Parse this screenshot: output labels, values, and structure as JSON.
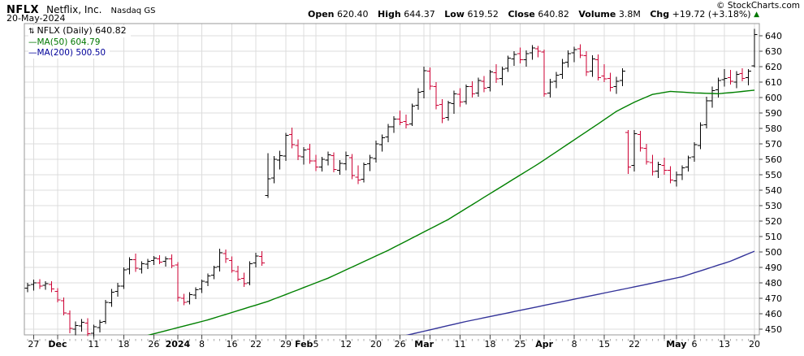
{
  "header": {
    "symbol": "NFLX",
    "company": "Netflix, Inc.",
    "exchange": "Nasdaq GS",
    "date": "20-May-2024",
    "watermark": "© StockCharts.com"
  },
  "quote": {
    "open_label": "Open",
    "open": "620.40",
    "high_label": "High",
    "high": "644.37",
    "low_label": "Low",
    "low": "619.52",
    "close_label": "Close",
    "close": "640.82",
    "volume_label": "Volume",
    "volume": "3.8M",
    "chg_label": "Chg",
    "chg": "+19.72 (+3.18%)",
    "arrow": "▲"
  },
  "legend": {
    "icon": "⇅",
    "main": "NFLX (Daily) 640.82",
    "ma50_dash": "—",
    "ma50": "MA(50) 604.79",
    "ma200_dash": "—",
    "ma200": "MA(200) 500.50"
  },
  "colors": {
    "bar_up": "#000000",
    "bar_down": "#cc0033",
    "ma50": "#008000",
    "ma200": "#333399",
    "grid": "#dcdcdc",
    "border": "#999999",
    "tick": "#444444",
    "minor_tick": "#aaaaaa",
    "chg_arrow": "#007700"
  },
  "chart_data": {
    "type": "ohlc",
    "title": "NFLX (Daily)",
    "symbol": "NFLX",
    "timeframe": "Daily",
    "last_close": 640.82,
    "y_axis": {
      "min": 450,
      "max": 640,
      "step": 10
    },
    "x_ticks": [
      {
        "i": 1,
        "label": "27",
        "bold": false
      },
      {
        "i": 5,
        "label": "Dec",
        "bold": true
      },
      {
        "i": 11,
        "label": "11",
        "bold": false
      },
      {
        "i": 16,
        "label": "18",
        "bold": false
      },
      {
        "i": 21,
        "label": "26",
        "bold": false
      },
      {
        "i": 25,
        "label": "2024",
        "bold": true
      },
      {
        "i": 29,
        "label": "8",
        "bold": false
      },
      {
        "i": 34,
        "label": "16",
        "bold": false
      },
      {
        "i": 38,
        "label": "22",
        "bold": false
      },
      {
        "i": 43,
        "label": "29",
        "bold": false
      },
      {
        "i": 46,
        "label": "Feb",
        "bold": true
      },
      {
        "i": 48,
        "label": "5",
        "bold": false
      },
      {
        "i": 53,
        "label": "12",
        "bold": false
      },
      {
        "i": 58,
        "label": "20",
        "bold": false
      },
      {
        "i": 62,
        "label": "26",
        "bold": false
      },
      {
        "i": 66,
        "label": "Mar",
        "bold": true
      },
      {
        "i": 72,
        "label": "11",
        "bold": false
      },
      {
        "i": 77,
        "label": "18",
        "bold": false
      },
      {
        "i": 82,
        "label": "25",
        "bold": false
      },
      {
        "i": 86,
        "label": "Apr",
        "bold": true
      },
      {
        "i": 91,
        "label": "8",
        "bold": false
      },
      {
        "i": 96,
        "label": "15",
        "bold": false
      },
      {
        "i": 101,
        "label": "22",
        "bold": false
      },
      {
        "i": 108,
        "label": "May",
        "bold": true
      },
      {
        "i": 111,
        "label": "6",
        "bold": false
      },
      {
        "i": 116,
        "label": "13",
        "bold": false
      },
      {
        "i": 121,
        "label": "20",
        "bold": false
      }
    ],
    "grid_only_ticks": [
      67,
      106
    ],
    "bars": [
      [
        "Nov 24",
        476.5,
        480,
        474,
        478.5
      ],
      [
        "Nov 27",
        479,
        482,
        475,
        480
      ],
      [
        "Nov 28",
        480,
        482.5,
        476,
        478
      ],
      [
        "Nov 29",
        478.5,
        481,
        475.5,
        479.5
      ],
      [
        "Nov 30",
        479,
        481,
        474,
        476
      ],
      [
        "Dec 1",
        474.5,
        476.5,
        467.5,
        469
      ],
      [
        "Dec 4",
        468.5,
        470.5,
        459,
        460.5
      ],
      [
        "Dec 5",
        460,
        462,
        447.5,
        450.5
      ],
      [
        "Dec 6",
        450,
        455,
        446,
        452.5
      ],
      [
        "Dec 7",
        452,
        456.5,
        448.5,
        454.5
      ],
      [
        "Dec 8",
        454,
        457,
        445.5,
        447
      ],
      [
        "Dec 11",
        447.5,
        453,
        445,
        451.5
      ],
      [
        "Dec 12",
        451,
        456,
        448,
        454.5
      ],
      [
        "Dec 13",
        455,
        469,
        453.5,
        467.5
      ],
      [
        "Dec 14",
        467,
        476,
        464.5,
        474
      ],
      [
        "Dec 15",
        474.5,
        480,
        471,
        478
      ],
      [
        "Dec 18",
        478,
        490,
        476,
        488.5
      ],
      [
        "Dec 19",
        489,
        496.5,
        485.5,
        495
      ],
      [
        "Dec 20",
        495,
        499,
        487,
        489.5
      ],
      [
        "Dec 21",
        489,
        494,
        486,
        492.5
      ],
      [
        "Dec 22",
        492,
        495.5,
        489,
        494
      ],
      [
        "Dec 26",
        494.5,
        497.5,
        491.5,
        496
      ],
      [
        "Dec 27",
        495.5,
        498,
        492,
        493.5
      ],
      [
        "Dec 28",
        494,
        497,
        490.5,
        495.5
      ],
      [
        "Dec 29",
        495.5,
        498.5,
        489.5,
        491
      ],
      [
        "Jan 2",
        491.5,
        493.5,
        468,
        470.5
      ],
      [
        "Jan 3",
        470,
        473,
        465.5,
        467.5
      ],
      [
        "Jan 4",
        468,
        474,
        466,
        472.5
      ],
      [
        "Jan 5",
        472,
        477,
        469.5,
        475.5
      ],
      [
        "Jan 8",
        476,
        482,
        473.5,
        481
      ],
      [
        "Jan 9",
        480.5,
        486,
        478,
        484.5
      ],
      [
        "Jan 10",
        485,
        491,
        482.5,
        490
      ],
      [
        "Jan 11",
        490.5,
        502,
        487.5,
        499.5
      ],
      [
        "Jan 12",
        499,
        501.5,
        493,
        495.5
      ],
      [
        "Jan 16",
        494.5,
        497,
        486.5,
        488
      ],
      [
        "Jan 17",
        487.5,
        491,
        481,
        482.5
      ],
      [
        "Jan 18",
        483,
        486.5,
        477.5,
        479.5
      ],
      [
        "Jan 19",
        480,
        494,
        478.5,
        492.5
      ],
      [
        "Jan 22",
        493,
        499.5,
        490,
        497.5
      ],
      [
        "Jan 23",
        497,
        500.5,
        491,
        493
      ],
      [
        "Jan 24",
        536.5,
        564,
        535,
        547.5
      ],
      [
        "Jan 25",
        548,
        562,
        544.5,
        560
      ],
      [
        "Jan 26",
        559.5,
        565.5,
        553.5,
        562.5
      ],
      [
        "Jan 29",
        562,
        577,
        559,
        575.5
      ],
      [
        "Jan 30",
        576,
        580.5,
        567,
        569.5
      ],
      [
        "Jan 31",
        569,
        573,
        559.5,
        562
      ],
      [
        "Feb 1",
        561.5,
        568,
        556.5,
        566
      ],
      [
        "Feb 2",
        566.5,
        570,
        557,
        559
      ],
      [
        "Feb 5",
        559,
        563,
        552.5,
        555
      ],
      [
        "Feb 6",
        555,
        561.5,
        552,
        560
      ],
      [
        "Feb 7",
        559.5,
        565,
        556,
        563
      ],
      [
        "Feb 8",
        562.5,
        564.5,
        551.5,
        553.5
      ],
      [
        "Feb 9",
        553,
        559.5,
        550,
        557.5
      ],
      [
        "Feb 12",
        557,
        565,
        553,
        562.5
      ],
      [
        "Feb 13",
        561,
        563.5,
        547,
        549.5
      ],
      [
        "Feb 14",
        548.5,
        556,
        544,
        546.5
      ],
      [
        "Feb 15",
        547,
        558,
        545,
        556.5
      ],
      [
        "Feb 16",
        557,
        563,
        552.5,
        561
      ],
      [
        "Feb 20",
        560.5,
        572,
        558,
        570
      ],
      [
        "Feb 21",
        569.5,
        576,
        565,
        574
      ],
      [
        "Feb 22",
        574.5,
        583,
        571,
        581
      ],
      [
        "Feb 23",
        581,
        588,
        577,
        586
      ],
      [
        "Feb 26",
        586,
        591.5,
        582,
        584
      ],
      [
        "Feb 27",
        584.5,
        589,
        580,
        582.5
      ],
      [
        "Feb 28",
        583,
        596,
        581.5,
        594.5
      ],
      [
        "Feb 29",
        595,
        606,
        592,
        603.5
      ],
      [
        "Mar 1",
        604,
        620,
        599.5,
        617.5
      ],
      [
        "Mar 4",
        617,
        619.5,
        605,
        607.5
      ],
      [
        "Mar 5",
        607,
        610,
        592.5,
        595
      ],
      [
        "Mar 6",
        595.5,
        599,
        583.5,
        586.5
      ],
      [
        "Mar 7",
        587,
        598,
        585,
        596.5
      ],
      [
        "Mar 8",
        596,
        604.5,
        589.5,
        602.5
      ],
      [
        "Mar 11",
        602,
        606,
        594,
        597
      ],
      [
        "Mar 12",
        597.5,
        608.5,
        595.5,
        607
      ],
      [
        "Mar 13",
        607,
        610.5,
        600,
        602.5
      ],
      [
        "Mar 14",
        603,
        613,
        600.5,
        611
      ],
      [
        "Mar 15",
        610.5,
        614,
        603.5,
        606
      ],
      [
        "Mar 18",
        606.5,
        618,
        604,
        616.5
      ],
      [
        "Mar 19",
        616,
        621.5,
        609.5,
        612
      ],
      [
        "Mar 20",
        612.5,
        620,
        608,
        618.5
      ],
      [
        "Mar 21",
        619,
        627,
        616.5,
        625.5
      ],
      [
        "Mar 22",
        625,
        630,
        620.5,
        628
      ],
      [
        "Mar 25",
        628.5,
        632.5,
        622,
        624.5
      ],
      [
        "Mar 26",
        624.5,
        630.5,
        620,
        628.5
      ],
      [
        "Mar 27",
        629,
        634,
        624.5,
        632
      ],
      [
        "Mar 28",
        631.5,
        633.5,
        626,
        630
      ],
      [
        "Apr 1",
        629.5,
        631,
        600.5,
        602.5
      ],
      [
        "Apr 2",
        603,
        612,
        600,
        610
      ],
      [
        "Apr 3",
        610.5,
        616.5,
        606,
        614.5
      ],
      [
        "Apr 4",
        615,
        625,
        612,
        622.5
      ],
      [
        "Apr 5",
        623,
        630.5,
        619.5,
        628.5
      ],
      [
        "Apr 8",
        629,
        633,
        623,
        631
      ],
      [
        "Apr 9",
        631.5,
        634.5,
        625.5,
        627.5
      ],
      [
        "Apr 10",
        627,
        630,
        614,
        616.5
      ],
      [
        "Apr 11",
        617,
        627.5,
        613.5,
        625
      ],
      [
        "Apr 12",
        624.5,
        628,
        611,
        613
      ],
      [
        "Apr 15",
        614,
        621.5,
        610,
        612
      ],
      [
        "Apr 16",
        612.5,
        616,
        604,
        606.5
      ],
      [
        "Apr 17",
        607,
        613.5,
        602.5,
        610.5
      ],
      [
        "Apr 18",
        611,
        619,
        607.5,
        617
      ],
      [
        "Apr 19",
        577.5,
        579,
        550.5,
        555
      ],
      [
        "Apr 22",
        556,
        579,
        552,
        576.5
      ],
      [
        "Apr 23",
        576,
        578.5,
        565,
        567.5
      ],
      [
        "Apr 24",
        567,
        570,
        556.5,
        558.5
      ],
      [
        "Apr 25",
        558,
        563,
        549.5,
        552
      ],
      [
        "Apr 26",
        552.5,
        558.5,
        548,
        556.5
      ],
      [
        "Apr 29",
        556,
        561,
        550,
        553
      ],
      [
        "Apr 30",
        553,
        555.5,
        544.5,
        546.5
      ],
      [
        "May 1",
        546,
        552,
        542.5,
        550
      ],
      [
        "May 2",
        550,
        556,
        546.5,
        554.5
      ],
      [
        "May 3",
        555,
        562.5,
        552,
        561
      ],
      [
        "May 6",
        561.5,
        571,
        558.5,
        569.5
      ],
      [
        "May 7",
        569,
        584,
        566.5,
        582
      ],
      [
        "May 8",
        582.5,
        600.5,
        580,
        598
      ],
      [
        "May 9",
        598,
        607,
        593.5,
        604.5
      ],
      [
        "May 10",
        605,
        613,
        600,
        611
      ],
      [
        "May 13",
        611.5,
        618.5,
        607,
        612.5
      ],
      [
        "May 14",
        613,
        618,
        608.5,
        610.5
      ],
      [
        "May 15",
        610,
        617,
        606,
        615
      ],
      [
        "May 16",
        615.5,
        619,
        610.5,
        612.5
      ],
      [
        "May 17",
        613,
        618.5,
        608,
        617
      ],
      [
        "May 20",
        620.4,
        644.37,
        619.52,
        640.82
      ]
    ],
    "ma50": {
      "label": "MA(50)",
      "last": 604.79,
      "points": [
        [
          20,
          446
        ],
        [
          30,
          456
        ],
        [
          40,
          468
        ],
        [
          50,
          483
        ],
        [
          60,
          501
        ],
        [
          70,
          521
        ],
        [
          80,
          545
        ],
        [
          85,
          557
        ],
        [
          90,
          570
        ],
        [
          95,
          583
        ],
        [
          98,
          591
        ],
        [
          101,
          597
        ],
        [
          104,
          602
        ],
        [
          107,
          604
        ],
        [
          111,
          603
        ],
        [
          115,
          602.5
        ],
        [
          118,
          603.5
        ],
        [
          121,
          604.8
        ]
      ]
    },
    "ma200": {
      "label": "MA(200)",
      "last": 500.5,
      "points": [
        [
          63,
          446
        ],
        [
          73,
          455
        ],
        [
          83,
          463
        ],
        [
          93,
          471
        ],
        [
          103,
          479
        ],
        [
          109,
          484
        ],
        [
          113,
          489
        ],
        [
          117,
          494
        ],
        [
          121,
          500.5
        ]
      ]
    }
  }
}
